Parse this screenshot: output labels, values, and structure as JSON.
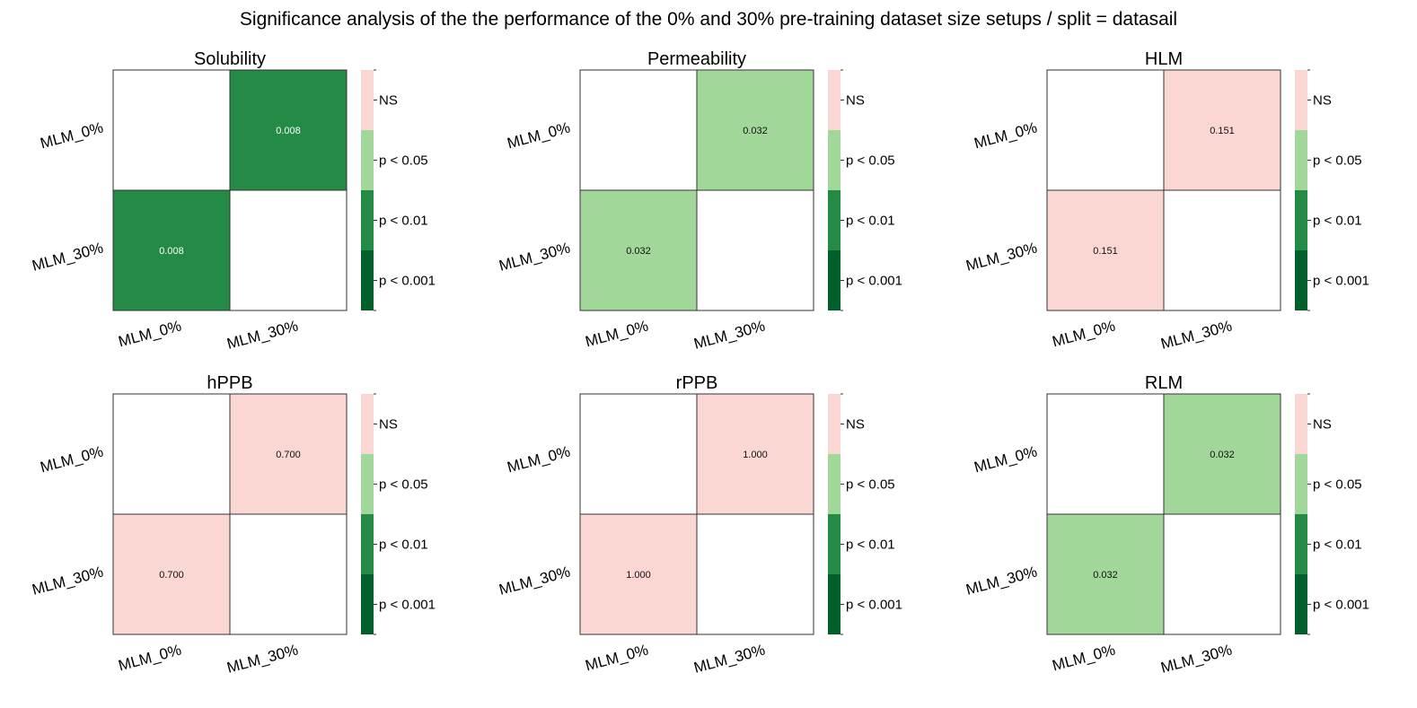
{
  "title": "Significance analysis of the the performance of the 0% and 30% pre-training dataset size setups / split = datasail",
  "legend": {
    "levels": [
      {
        "label": "NS",
        "color": "#fbd7d4"
      },
      {
        "label": "p < 0.05",
        "color": "#a1d899"
      },
      {
        "label": "p < 0.01",
        "color": "#238b45"
      },
      {
        "label": "p < 0.001",
        "color": "#00602c"
      }
    ]
  },
  "chart_data": [
    {
      "type": "heatmap",
      "title": "Solubility",
      "rows": [
        "MLM_0%",
        "MLM_30%"
      ],
      "cols": [
        "MLM_0%",
        "MLM_30%"
      ],
      "values": [
        [
          null,
          "0.008"
        ],
        [
          "0.008",
          null
        ]
      ],
      "levels": [
        [
          null,
          "p < 0.01"
        ],
        [
          "p < 0.01",
          null
        ]
      ]
    },
    {
      "type": "heatmap",
      "title": "Permeability",
      "rows": [
        "MLM_0%",
        "MLM_30%"
      ],
      "cols": [
        "MLM_0%",
        "MLM_30%"
      ],
      "values": [
        [
          null,
          "0.032"
        ],
        [
          "0.032",
          null
        ]
      ],
      "levels": [
        [
          null,
          "p < 0.05"
        ],
        [
          "p < 0.05",
          null
        ]
      ]
    },
    {
      "type": "heatmap",
      "title": "HLM",
      "rows": [
        "MLM_0%",
        "MLM_30%"
      ],
      "cols": [
        "MLM_0%",
        "MLM_30%"
      ],
      "values": [
        [
          null,
          "0.151"
        ],
        [
          "0.151",
          null
        ]
      ],
      "levels": [
        [
          null,
          "NS"
        ],
        [
          "NS",
          null
        ]
      ]
    },
    {
      "type": "heatmap",
      "title": "hPPB",
      "rows": [
        "MLM_0%",
        "MLM_30%"
      ],
      "cols": [
        "MLM_0%",
        "MLM_30%"
      ],
      "values": [
        [
          null,
          "0.700"
        ],
        [
          "0.700",
          null
        ]
      ],
      "levels": [
        [
          null,
          "NS"
        ],
        [
          "NS",
          null
        ]
      ]
    },
    {
      "type": "heatmap",
      "title": "rPPB",
      "rows": [
        "MLM_0%",
        "MLM_30%"
      ],
      "cols": [
        "MLM_0%",
        "MLM_30%"
      ],
      "values": [
        [
          null,
          "1.000"
        ],
        [
          "1.000",
          null
        ]
      ],
      "levels": [
        [
          null,
          "NS"
        ],
        [
          "NS",
          null
        ]
      ]
    },
    {
      "type": "heatmap",
      "title": "RLM",
      "rows": [
        "MLM_0%",
        "MLM_30%"
      ],
      "cols": [
        "MLM_0%",
        "MLM_30%"
      ],
      "values": [
        [
          null,
          "0.032"
        ],
        [
          "0.032",
          null
        ]
      ],
      "levels": [
        [
          null,
          "p < 0.05"
        ],
        [
          "p < 0.05",
          null
        ]
      ]
    }
  ]
}
